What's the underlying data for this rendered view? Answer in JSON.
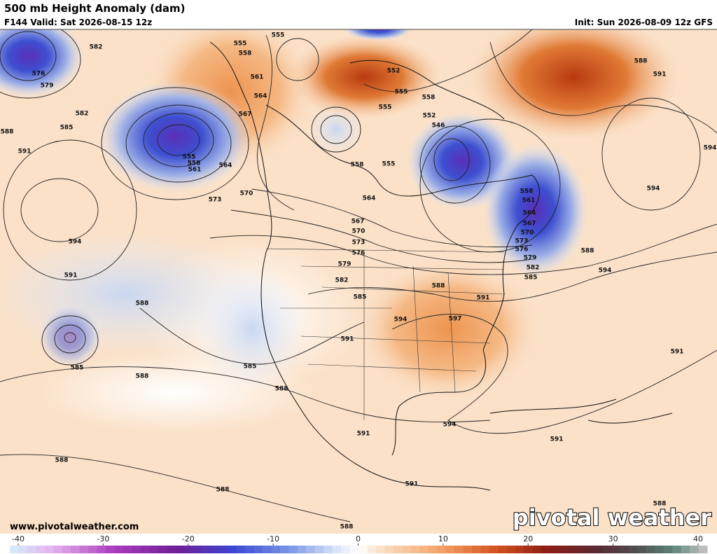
{
  "header": {
    "title": "500 mb Height Anomaly (dam)",
    "valid": "F144 Valid: Sat 2026-08-15 12z",
    "init": "Init: Sun 2026-08-09 12z GFS"
  },
  "map": {
    "contour_labels": [
      582,
      576,
      579,
      582,
      585,
      588,
      591,
      594,
      591,
      588,
      585,
      588,
      588,
      588,
      588,
      555,
      555,
      558,
      561,
      564,
      567,
      555,
      558,
      561,
      564,
      570,
      573,
      552,
      555,
      558,
      555,
      552,
      546,
      558,
      555,
      564,
      567,
      570,
      573,
      576,
      579,
      582,
      585,
      558,
      561,
      564,
      567,
      570,
      573,
      576,
      579,
      582,
      585,
      588,
      594,
      588,
      591,
      594,
      594,
      588,
      591,
      594,
      597,
      591,
      585,
      588,
      594,
      591,
      591,
      591,
      591,
      588
    ]
  },
  "footer": {
    "website": "www.pivotalweather.com",
    "logo": "pivotal weather"
  },
  "colorbar": {
    "range": [
      -40,
      40
    ],
    "ticks": [
      -40,
      -30,
      -20,
      -10,
      0,
      10,
      20,
      30,
      40
    ]
  }
}
